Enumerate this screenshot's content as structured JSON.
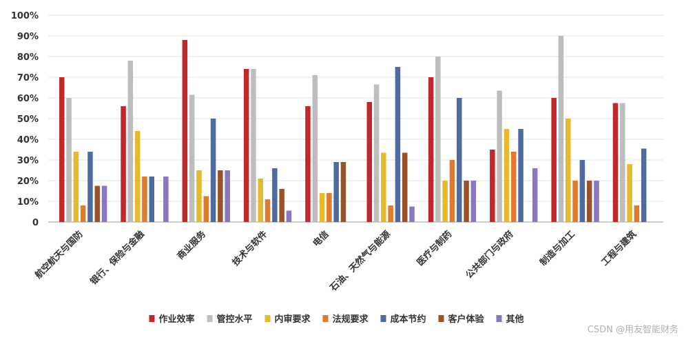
{
  "chart_data": {
    "type": "bar",
    "categories": [
      "航空航天与国防",
      "银行、保险与金融",
      "商业服务",
      "技术与软件",
      "电信",
      "石油、天然气与能源",
      "医疗与制药",
      "公共部门与政府",
      "制造与加工",
      "工程与建筑"
    ],
    "y_tick_labels": [
      "0",
      "10%",
      "20%",
      "30%",
      "40%",
      "50%",
      "60%",
      "70%",
      "80%",
      "90%",
      "100%"
    ],
    "ylim": [
      0,
      100
    ],
    "grid": true,
    "legend_position": "bottom",
    "series": [
      {
        "name": "作业效率",
        "color": "#c0282c",
        "values": [
          70,
          56,
          88,
          74,
          56,
          58,
          70,
          35,
          60,
          57.5
        ]
      },
      {
        "name": "管控水平",
        "color": "#bdbdbd",
        "values": [
          60,
          78,
          61.5,
          74,
          71,
          66.5,
          80,
          63.5,
          90,
          57.5
        ]
      },
      {
        "name": "内审要求",
        "color": "#e6b92e",
        "values": [
          34,
          44,
          25,
          21,
          14,
          33.5,
          20,
          45,
          50,
          28
        ]
      },
      {
        "name": "法规要求",
        "color": "#e07a2c",
        "values": [
          8,
          22,
          12.5,
          11,
          14,
          8,
          30,
          34,
          20,
          8
        ]
      },
      {
        "name": "成本节约",
        "color": "#4e6a9e",
        "values": [
          34,
          22,
          50,
          26,
          29,
          75,
          60,
          45,
          30,
          35.5
        ]
      },
      {
        "name": "客户体验",
        "color": "#9a5228",
        "values": [
          17.5,
          null,
          25,
          16,
          29,
          33.5,
          20,
          null,
          20,
          null
        ]
      },
      {
        "name": "其他",
        "color": "#8b76c0",
        "values": [
          17.5,
          22,
          25,
          5.5,
          null,
          7.5,
          20,
          26,
          20,
          null
        ]
      }
    ]
  },
  "watermark": "CSDN @用友智能财务"
}
